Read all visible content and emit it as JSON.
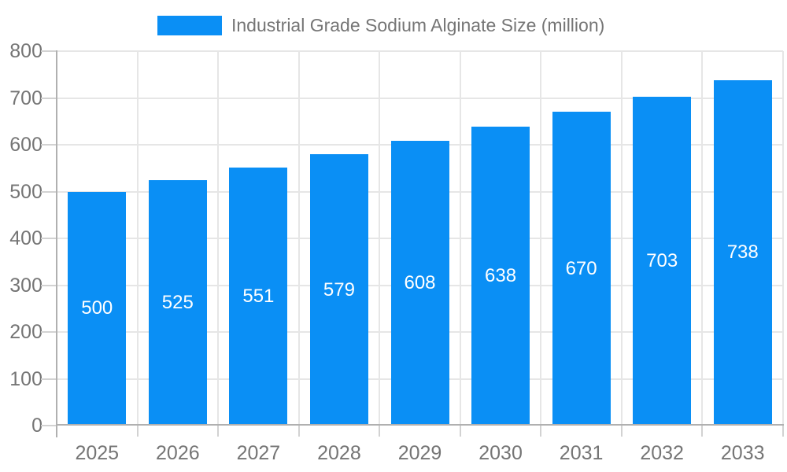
{
  "legend": {
    "label": "Industrial Grade Sodium Alginate Size (million)"
  },
  "colors": {
    "bar": "#0a8ff5",
    "axis_text": "#757575",
    "grid": "#e6e6e6",
    "axis_line": "#b0b0b0",
    "tick": "#d2d2d2",
    "value_label": "#ffffff",
    "background": "#ffffff"
  },
  "chart_data": {
    "type": "bar",
    "title": "Industrial Grade Sodium Alginate Size (million)",
    "categories": [
      "2025",
      "2026",
      "2027",
      "2028",
      "2029",
      "2030",
      "2031",
      "2032",
      "2033"
    ],
    "series": [
      {
        "name": "Industrial Grade Sodium Alginate Size (million)",
        "values": [
          500,
          525,
          551,
          579,
          608,
          638,
          670,
          703,
          738
        ]
      }
    ],
    "values": [
      500,
      525,
      551,
      579,
      608,
      638,
      670,
      703,
      738
    ],
    "value_labels_position": "inside-center",
    "xlabel": "",
    "ylabel": "",
    "ylim": [
      0,
      800
    ],
    "yticks": [
      0,
      100,
      200,
      300,
      400,
      500,
      600,
      700,
      800
    ],
    "grid": true,
    "legend_position": "top"
  }
}
